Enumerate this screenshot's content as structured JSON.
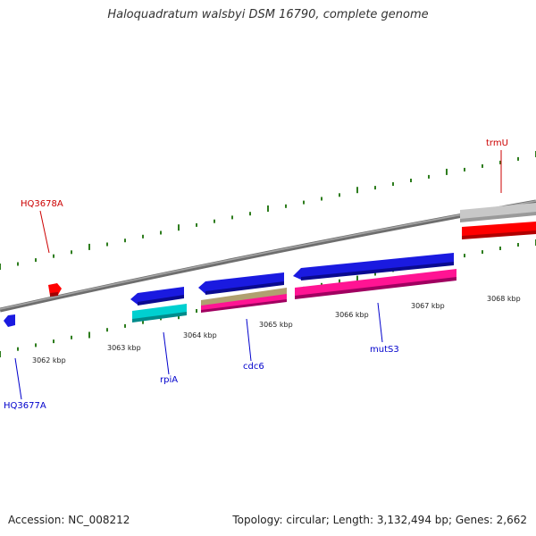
{
  "title": "Haloquadratum walsbyi DSM 16790, complete genome",
  "footer": {
    "accession": "Accession: NC_008212",
    "summary": "Topology: circular; Length: 3,132,494 bp; Genes: 2,662"
  },
  "ticks": [
    "3062 kbp",
    "3063 kbp",
    "3064 kbp",
    "3065 kbp",
    "3066 kbp",
    "3067 kbp",
    "3068 kbp"
  ],
  "genes": {
    "trmU": "trmU",
    "HQ3678A": "HQ3678A",
    "HQ3677A": "HQ3677A",
    "rpiA": "rpiA",
    "cdc6": "cdc6",
    "mutS3": "mutS3"
  },
  "colors": {
    "forward_label": "#cc0000",
    "reverse_label": "#0000cc",
    "blue_gene": "#1a1ae0",
    "red_gene": "#ff0000",
    "cyan_gene": "#00cccc",
    "olive_gene": "#b0a070",
    "pink_gene": "#ff1493",
    "gray_gene": "#c8c8c8",
    "backbone": "#808080",
    "gc_tick": "#2e7d1e"
  }
}
